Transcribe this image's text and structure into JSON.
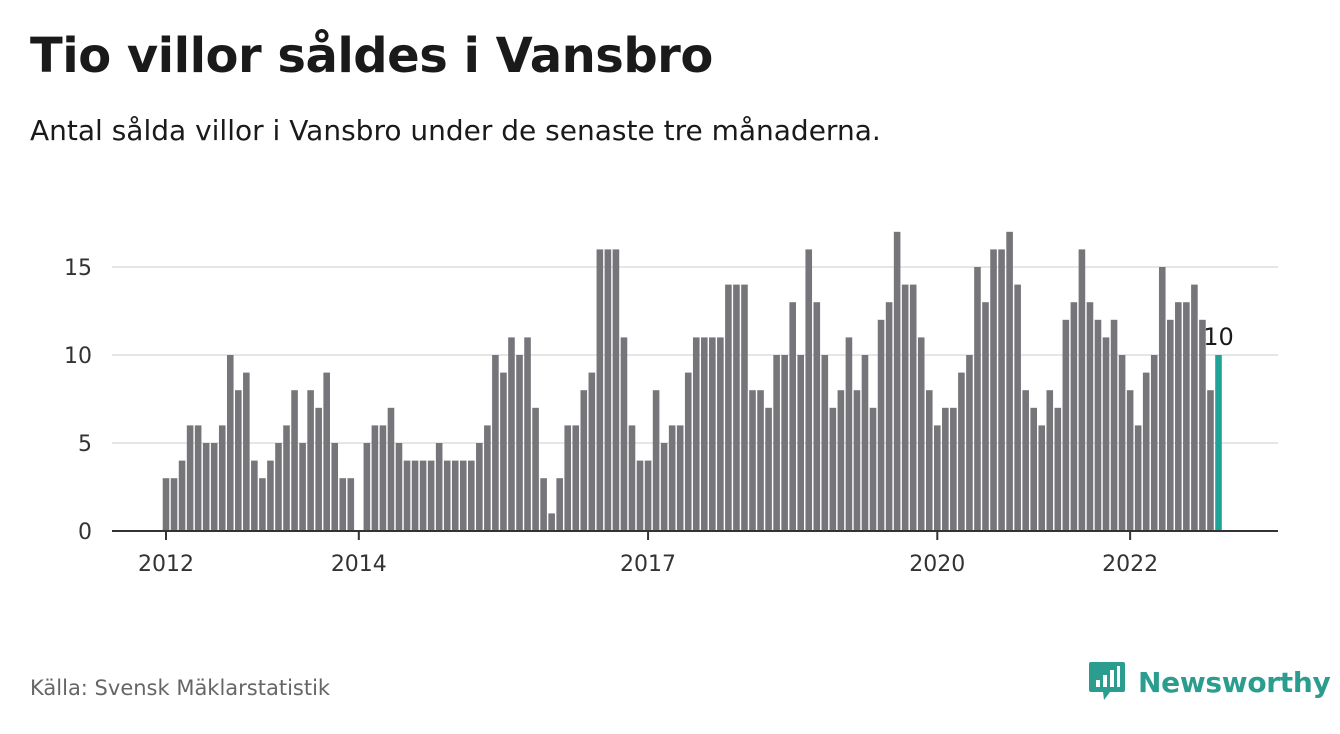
{
  "title": "Tio villor såldes i Vansbro",
  "subtitle": "Antal sålda villor i Vansbro under de senaste tre månaderna.",
  "source": "Källa: Svensk Mäklarstatistik",
  "brand": {
    "name": "Newsworthy",
    "icon": "newsworthy-logo-icon",
    "color": "#2a9d8f"
  },
  "colors": {
    "bar": "#76767a",
    "highlight": "#1fa399",
    "grid": "#dddddd",
    "axis": "#333333"
  },
  "chart_data": {
    "type": "bar",
    "title": "Tio villor såldes i Vansbro",
    "xlabel": "",
    "ylabel": "",
    "ylim": [
      0,
      17.5
    ],
    "yticks": [
      0,
      5,
      10,
      15
    ],
    "xticks": [
      "2012",
      "2014",
      "2017",
      "2020",
      "2022"
    ],
    "grid": true,
    "start_month": "2012-01",
    "values": [
      3,
      3,
      4,
      6,
      6,
      5,
      5,
      6,
      10,
      8,
      9,
      4,
      3,
      4,
      5,
      6,
      8,
      5,
      8,
      7,
      9,
      5,
      3,
      3,
      null,
      5,
      6,
      6,
      7,
      5,
      4,
      4,
      4,
      4,
      5,
      4,
      4,
      4,
      4,
      5,
      6,
      10,
      9,
      11,
      10,
      11,
      7,
      3,
      1,
      3,
      6,
      6,
      8,
      9,
      16,
      16,
      16,
      11,
      6,
      4,
      4,
      8,
      5,
      6,
      6,
      9,
      11,
      11,
      11,
      11,
      14,
      14,
      14,
      8,
      8,
      7,
      10,
      10,
      13,
      10,
      16,
      13,
      10,
      7,
      8,
      11,
      8,
      10,
      7,
      12,
      13,
      17,
      14,
      14,
      11,
      8,
      6,
      7,
      7,
      9,
      10,
      15,
      13,
      16,
      16,
      17,
      14,
      8,
      7,
      6,
      8,
      7,
      12,
      13,
      16,
      13,
      12,
      11,
      12,
      10,
      8,
      6,
      9,
      10,
      15,
      12,
      13,
      13,
      14,
      12,
      8,
      10
    ],
    "highlight": {
      "label": "10",
      "value": 10
    }
  }
}
